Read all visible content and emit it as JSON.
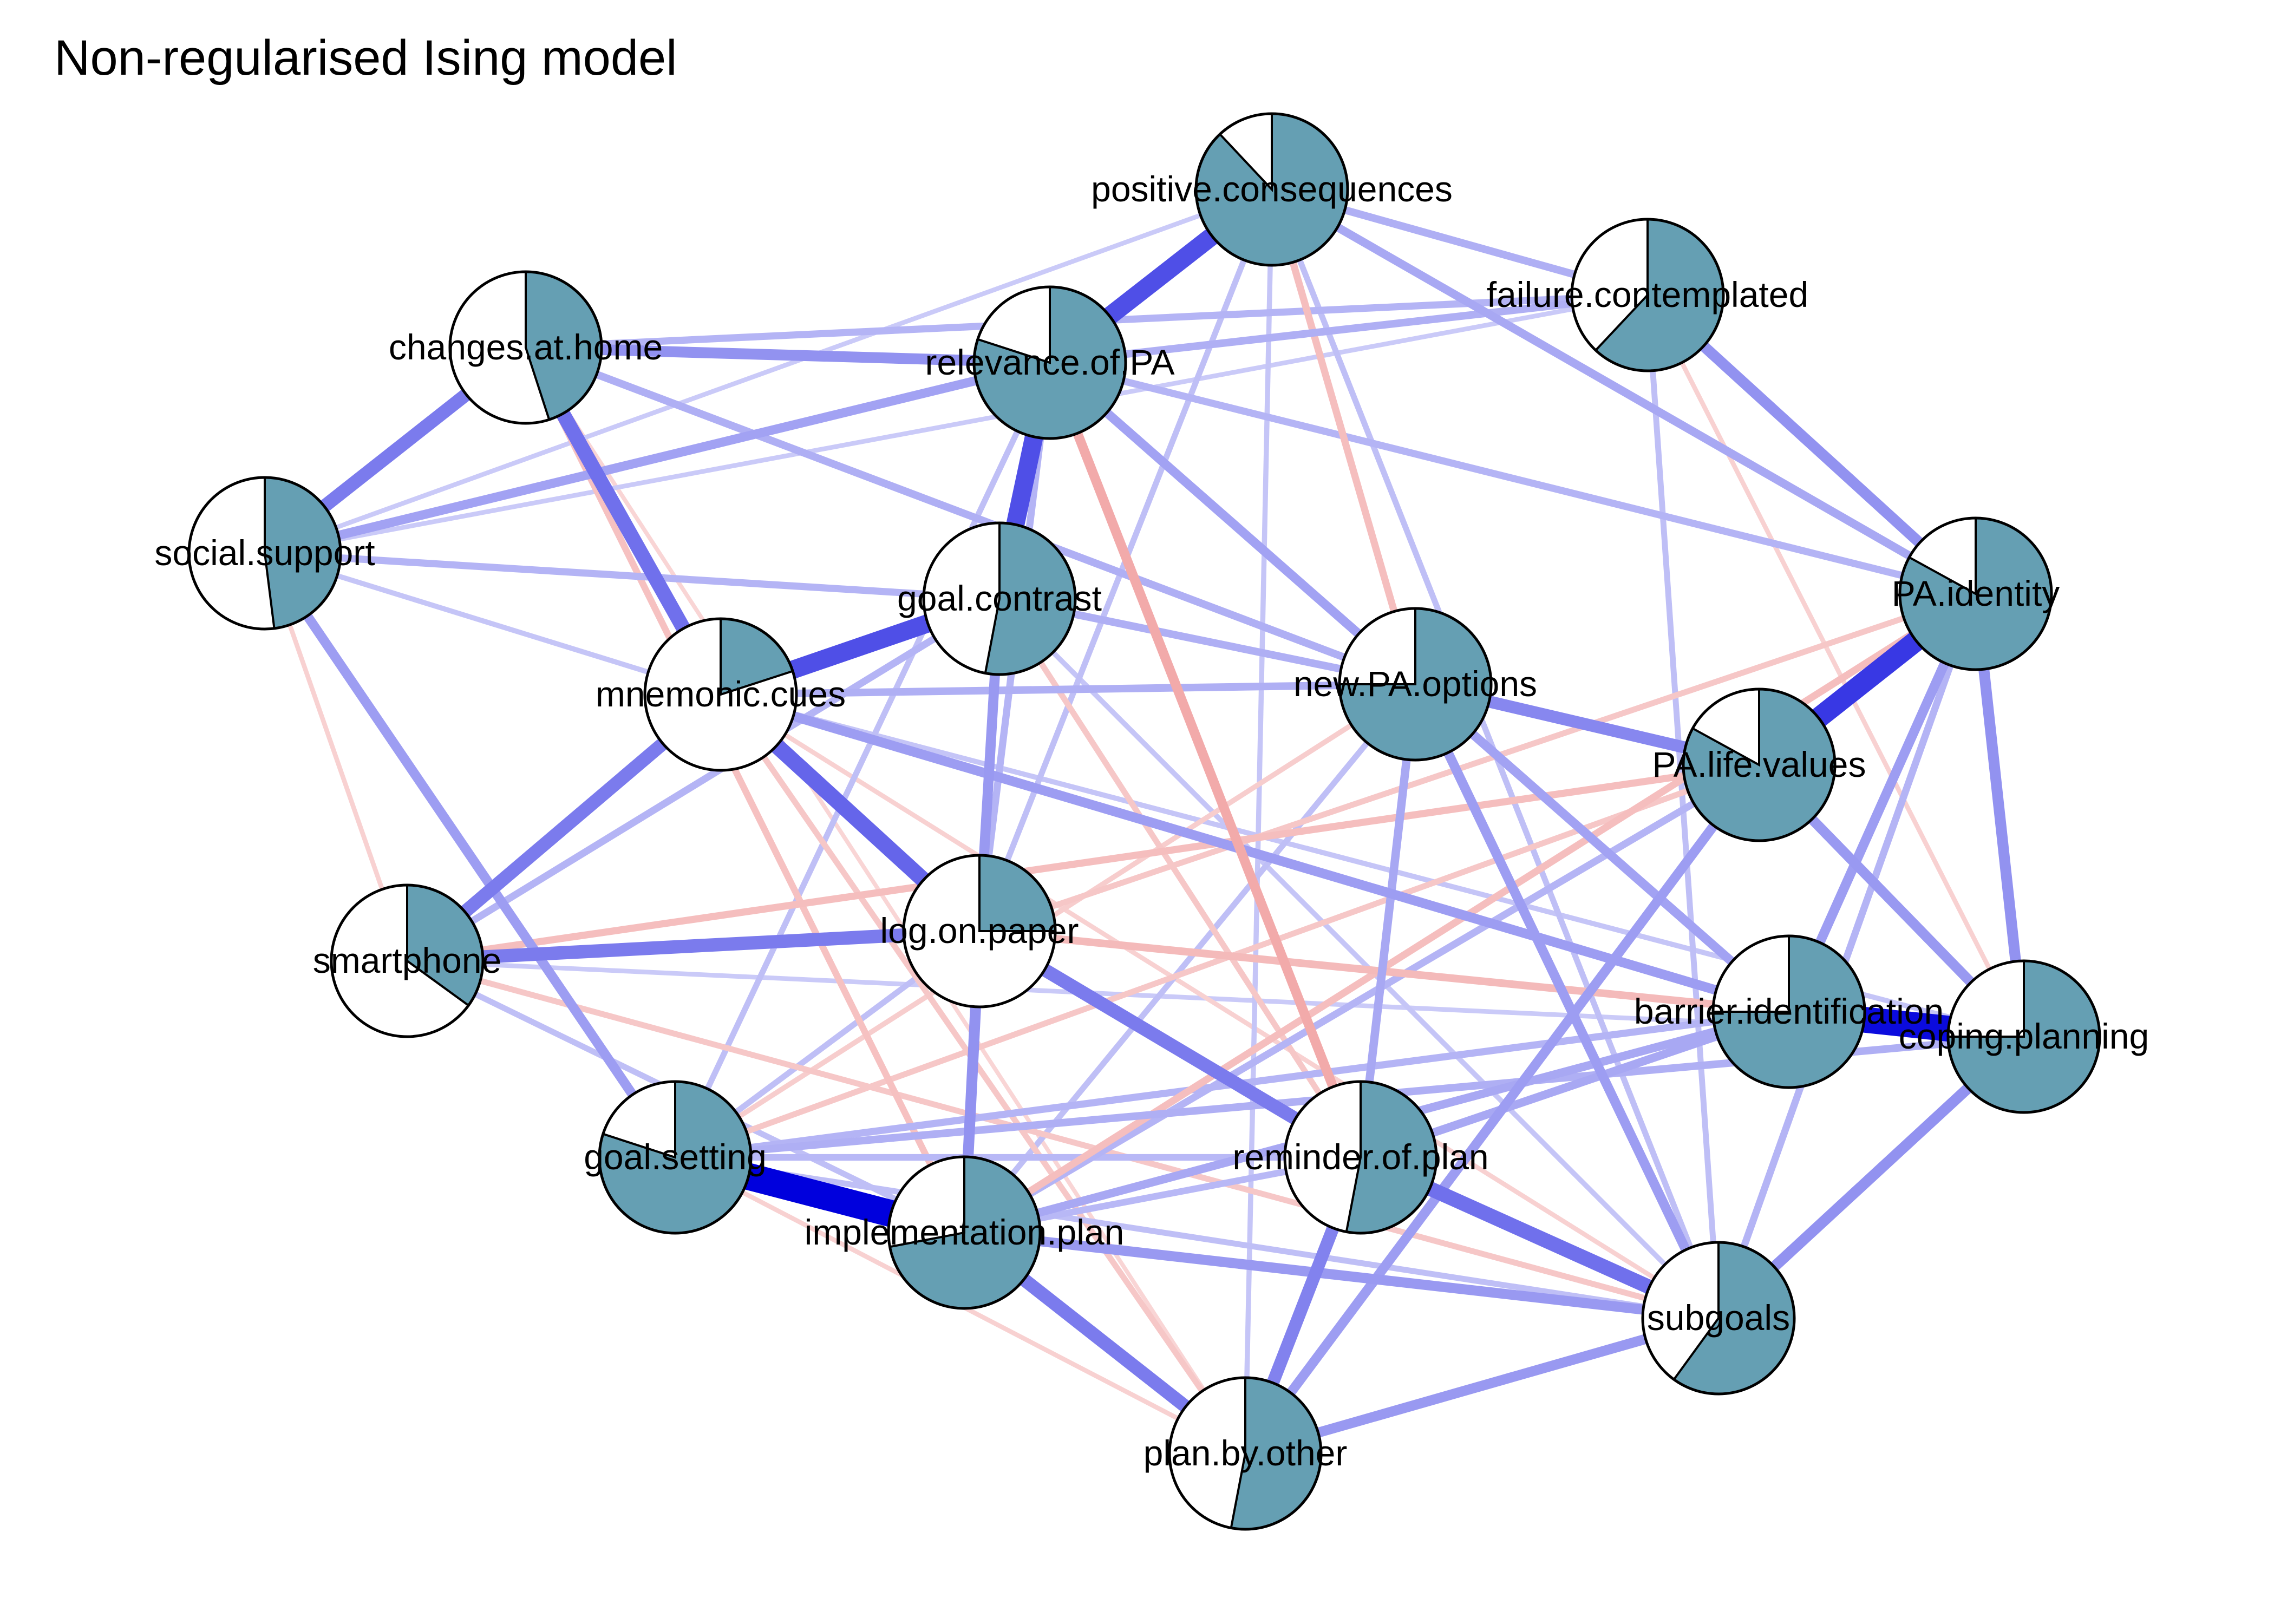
{
  "title": "Non-regularised Ising model",
  "colors": {
    "positive_edge": "#0000dd",
    "negative_edge": "#dd2222",
    "pie_fill": "#659fb3",
    "node_background": "#ffffff",
    "node_border": "#000000"
  },
  "nodes": [
    {
      "id": "positive.consequences",
      "label": "positive.consequences",
      "proportion": 0.88
    },
    {
      "id": "failure.contemplated",
      "label": "failure.contemplated",
      "proportion": 0.62
    },
    {
      "id": "changes.at.home",
      "label": "changes.at.home",
      "proportion": 0.45
    },
    {
      "id": "relevance.of.PA",
      "label": "relevance.of.PA",
      "proportion": 0.8
    },
    {
      "id": "social.support",
      "label": "social.support",
      "proportion": 0.48
    },
    {
      "id": "goal.contrast",
      "label": "goal.contrast",
      "proportion": 0.53
    },
    {
      "id": "PA.identity",
      "label": "PA.identity",
      "proportion": 0.83
    },
    {
      "id": "mnemonic.cues",
      "label": "mnemonic.cues",
      "proportion": 0.2
    },
    {
      "id": "new.PA.options",
      "label": "new.PA.options",
      "proportion": 0.75
    },
    {
      "id": "PA.life.values",
      "label": "PA.life.values",
      "proportion": 0.83
    },
    {
      "id": "smartphone",
      "label": "smartphone",
      "proportion": 0.35
    },
    {
      "id": "log.on.paper",
      "label": "log.on.paper",
      "proportion": 0.25
    },
    {
      "id": "barrier.identification",
      "label": "barrier.identification",
      "proportion": 0.75
    },
    {
      "id": "coping.planning",
      "label": "coping.planning",
      "proportion": 0.75
    },
    {
      "id": "goal.setting",
      "label": "goal.setting",
      "proportion": 0.8
    },
    {
      "id": "reminder.of.plan",
      "label": "reminder.of.plan",
      "proportion": 0.53
    },
    {
      "id": "implementation.plan",
      "label": "implementation.plan",
      "proportion": 0.72
    },
    {
      "id": "subgoals",
      "label": "subgoals",
      "proportion": 0.6
    },
    {
      "id": "plan.by.other",
      "label": "plan.by.other",
      "proportion": 0.53
    }
  ],
  "edges": [
    {
      "from": "goal.setting",
      "to": "implementation.plan",
      "weight": 1.0
    },
    {
      "from": "barrier.identification",
      "to": "coping.planning",
      "weight": 0.95
    },
    {
      "from": "PA.identity",
      "to": "PA.life.values",
      "weight": 0.75
    },
    {
      "from": "positive.consequences",
      "to": "relevance.of.PA",
      "weight": 0.65
    },
    {
      "from": "relevance.of.PA",
      "to": "goal.contrast",
      "weight": 0.65
    },
    {
      "from": "goal.contrast",
      "to": "mnemonic.cues",
      "weight": 0.65
    },
    {
      "from": "mnemonic.cues",
      "to": "log.on.paper",
      "weight": 0.55
    },
    {
      "from": "changes.at.home",
      "to": "mnemonic.cues",
      "weight": 0.5
    },
    {
      "from": "reminder.of.plan",
      "to": "subgoals",
      "weight": 0.5
    },
    {
      "from": "social.support",
      "to": "changes.at.home",
      "weight": 0.45
    },
    {
      "from": "smartphone",
      "to": "log.on.paper",
      "weight": 0.45
    },
    {
      "from": "smartphone",
      "to": "mnemonic.cues",
      "weight": 0.45
    },
    {
      "from": "implementation.plan",
      "to": "plan.by.other",
      "weight": 0.45
    },
    {
      "from": "log.on.paper",
      "to": "reminder.of.plan",
      "weight": 0.45
    },
    {
      "from": "reminder.of.plan",
      "to": "plan.by.other",
      "weight": 0.42
    },
    {
      "from": "new.PA.options",
      "to": "PA.life.values",
      "weight": 0.4
    },
    {
      "from": "PA.identity",
      "to": "coping.planning",
      "weight": 0.35
    },
    {
      "from": "coping.planning",
      "to": "subgoals",
      "weight": 0.35
    },
    {
      "from": "implementation.plan",
      "to": "subgoals",
      "weight": 0.32
    },
    {
      "from": "plan.by.other",
      "to": "subgoals",
      "weight": 0.32
    },
    {
      "from": "log.on.paper",
      "to": "implementation.plan",
      "weight": 0.35
    },
    {
      "from": "goal.contrast",
      "to": "log.on.paper",
      "weight": 0.32
    },
    {
      "from": "changes.at.home",
      "to": "relevance.of.PA",
      "weight": 0.35
    },
    {
      "from": "PA.life.values",
      "to": "coping.planning",
      "weight": 0.32
    },
    {
      "from": "failure.contemplated",
      "to": "PA.identity",
      "weight": 0.35
    },
    {
      "from": "mnemonic.cues",
      "to": "barrier.identification",
      "weight": 0.3
    },
    {
      "from": "social.support",
      "to": "goal.setting",
      "weight": 0.3
    },
    {
      "from": "relevance.of.PA",
      "to": "barrier.identification",
      "weight": 0.28
    },
    {
      "from": "relevance.of.PA",
      "to": "social.support",
      "weight": 0.28
    },
    {
      "from": "PA.identity",
      "to": "barrier.identification",
      "weight": 0.3
    },
    {
      "from": "positive.consequences",
      "to": "PA.identity",
      "weight": 0.25
    },
    {
      "from": "positive.consequences",
      "to": "failure.contemplated",
      "weight": 0.22
    },
    {
      "from": "failure.contemplated",
      "to": "relevance.of.PA",
      "weight": 0.22
    },
    {
      "from": "new.PA.options",
      "to": "subgoals",
      "weight": 0.3
    },
    {
      "from": "new.PA.options",
      "to": "reminder.of.plan",
      "weight": 0.25
    },
    {
      "from": "PA.life.values",
      "to": "plan.by.other",
      "weight": 0.3
    },
    {
      "from": "barrier.identification",
      "to": "reminder.of.plan",
      "weight": 0.25
    },
    {
      "from": "implementation.plan",
      "to": "barrier.identification",
      "weight": 0.25
    },
    {
      "from": "goal.setting",
      "to": "coping.planning",
      "weight": 0.22
    },
    {
      "from": "goal.setting",
      "to": "barrier.identification",
      "weight": 0.2
    },
    {
      "from": "mnemonic.cues",
      "to": "new.PA.options",
      "weight": 0.22
    },
    {
      "from": "goal.contrast",
      "to": "new.PA.options",
      "weight": 0.22
    },
    {
      "from": "social.support",
      "to": "goal.contrast",
      "weight": 0.2
    },
    {
      "from": "smartphone",
      "to": "goal.contrast",
      "weight": 0.2
    },
    {
      "from": "changes.at.home",
      "to": "failure.contemplated",
      "weight": 0.2
    },
    {
      "from": "changes.at.home",
      "to": "new.PA.options",
      "weight": 0.22
    },
    {
      "from": "relevance.of.PA",
      "to": "PA.identity",
      "weight": 0.2
    },
    {
      "from": "PA.identity",
      "to": "subgoals",
      "weight": 0.2
    },
    {
      "from": "PA.life.values",
      "to": "implementation.plan",
      "weight": 0.2
    },
    {
      "from": "log.on.paper",
      "to": "relevance.of.PA",
      "weight": 0.2
    },
    {
      "from": "positive.consequences",
      "to": "subgoals",
      "weight": 0.15
    },
    {
      "from": "failure.contemplated",
      "to": "subgoals",
      "weight": 0.15
    },
    {
      "from": "log.on.paper",
      "to": "positive.consequences",
      "weight": 0.15
    },
    {
      "from": "goal.setting",
      "to": "relevance.of.PA",
      "weight": 0.15
    },
    {
      "from": "implementation.plan",
      "to": "new.PA.options",
      "weight": 0.15
    },
    {
      "from": "smartphone",
      "to": "implementation.plan",
      "weight": 0.15
    },
    {
      "from": "goal.setting",
      "to": "log.on.paper",
      "weight": 0.15
    },
    {
      "from": "social.support",
      "to": "mnemonic.cues",
      "weight": 0.12
    },
    {
      "from": "plan.by.other",
      "to": "positive.consequences",
      "weight": 0.12
    },
    {
      "from": "coping.planning",
      "to": "mnemonic.cues",
      "weight": 0.12
    },
    {
      "from": "subgoals",
      "to": "goal.contrast",
      "weight": 0.12
    },
    {
      "from": "smartphone",
      "to": "coping.planning",
      "weight": 0.1
    },
    {
      "from": "social.support",
      "to": "failure.contemplated",
      "weight": 0.1
    },
    {
      "from": "relevance.of.PA",
      "to": "reminder.of.plan",
      "weight": -0.3
    },
    {
      "from": "positive.consequences",
      "to": "new.PA.options",
      "weight": -0.2
    },
    {
      "from": "log.on.paper",
      "to": "barrier.identification",
      "weight": -0.22
    },
    {
      "from": "smartphone",
      "to": "PA.life.values",
      "weight": -0.2
    },
    {
      "from": "implementation.plan",
      "to": "PA.identity",
      "weight": -0.2
    },
    {
      "from": "changes.at.home",
      "to": "implementation.plan",
      "weight": -0.18
    },
    {
      "from": "mnemonic.cues",
      "to": "plan.by.other",
      "weight": -0.15
    },
    {
      "from": "smartphone",
      "to": "subgoals",
      "weight": -0.15
    },
    {
      "from": "goal.setting",
      "to": "PA.life.values",
      "weight": -0.15
    },
    {
      "from": "goal.contrast",
      "to": "reminder.of.plan",
      "weight": -0.15
    },
    {
      "from": "log.on.paper",
      "to": "PA.identity",
      "weight": -0.15
    },
    {
      "from": "goal.setting",
      "to": "new.PA.options",
      "weight": -0.12
    },
    {
      "from": "social.support",
      "to": "smartphone",
      "weight": -0.1
    },
    {
      "from": "failure.contemplated",
      "to": "coping.planning",
      "weight": -0.1
    },
    {
      "from": "goal.setting",
      "to": "plan.by.other",
      "weight": -0.1
    },
    {
      "from": "subgoals",
      "to": "mnemonic.cues",
      "weight": -0.1
    },
    {
      "from": "changes.at.home",
      "to": "plan.by.other",
      "weight": -0.08
    },
    {
      "from": "positive.consequences",
      "to": "plan.by.other",
      "weight": -0.08
    },
    {
      "from": "implementation.plan",
      "to": "reminder.of.plan",
      "weight": 0.18
    },
    {
      "from": "social.support",
      "to": "positive.consequences",
      "weight": 0.1
    },
    {
      "from": "goal.setting",
      "to": "reminder.of.plan",
      "weight": 0.18
    },
    {
      "from": "goal.setting",
      "to": "subgoals",
      "weight": 0.15
    }
  ]
}
